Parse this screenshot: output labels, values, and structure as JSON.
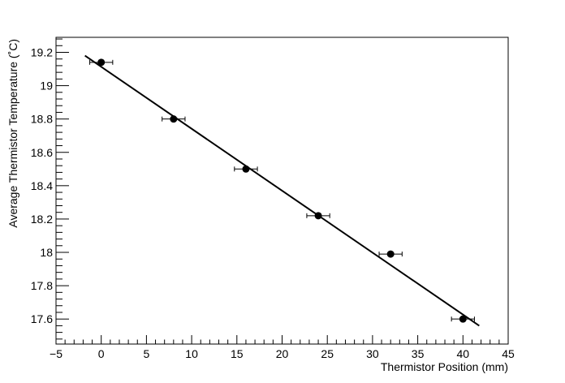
{
  "chart_data": {
    "type": "scatter",
    "xlabel": "Thermistor Position (mm)",
    "ylabel": "Average Thermistor Temperature (˚C)",
    "xlim": [
      -5,
      45
    ],
    "ylim": [
      17.45,
      19.29
    ],
    "x_ticks": [
      -5,
      0,
      5,
      10,
      15,
      20,
      25,
      30,
      35,
      40,
      45
    ],
    "x_tick_labels": [
      "−5",
      "0",
      "5",
      "10",
      "15",
      "20",
      "25",
      "30",
      "35",
      "40",
      "45"
    ],
    "y_ticks": [
      17.6,
      17.8,
      18.0,
      18.2,
      18.4,
      18.6,
      18.8,
      19.0,
      19.2
    ],
    "y_tick_labels": [
      "17.6",
      "17.8",
      "18",
      "18.2",
      "18.4",
      "18.6",
      "18.8",
      "19",
      "19.2"
    ],
    "grid": false,
    "series": [
      {
        "x": [
          0,
          8,
          16,
          24,
          32,
          40
        ],
        "y": [
          19.14,
          18.8,
          18.5,
          18.22,
          17.99,
          17.6
        ],
        "x_err": [
          1.27,
          1.27,
          1.27,
          1.27,
          1.27,
          1.27
        ],
        "marker": "circle",
        "color": "#000000"
      }
    ],
    "fit_line": {
      "x": [
        -1.8,
        41.8
      ],
      "y": [
        19.18,
        17.56
      ],
      "color": "#000000"
    }
  }
}
